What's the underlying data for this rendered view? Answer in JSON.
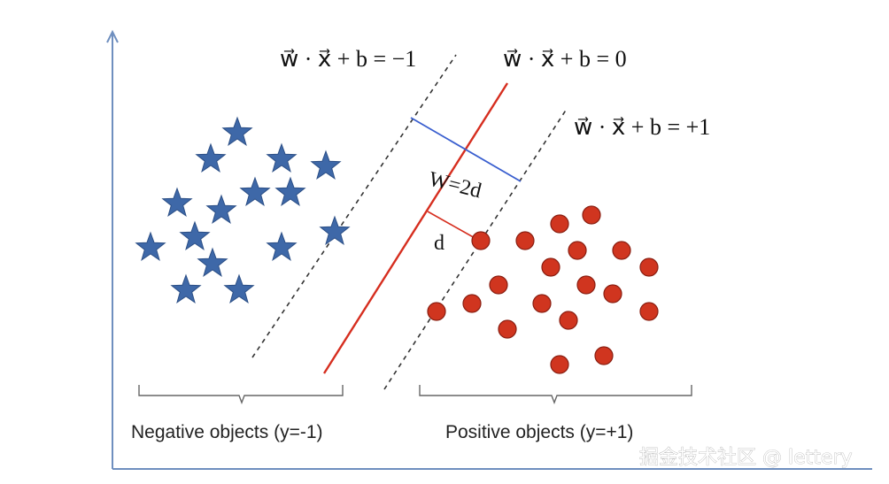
{
  "colors": {
    "axis": "#6f8fbf",
    "star": "#3e68a8",
    "star_stroke": "#2c4f86",
    "dot": "#d0351f",
    "dot_stroke": "#8a1f12",
    "hyperplane": "#d62e1f",
    "width_line": "#3a5fcf",
    "dashed": "#333333",
    "brace": "#666666"
  },
  "equations": {
    "negative": "w⃗ · x⃗ + b = −1",
    "middle": "w⃗ · x⃗ + b = 0",
    "positive": "w⃗ · x⃗ + b = +1"
  },
  "margin_labels": {
    "width": "W=2d",
    "half": "d"
  },
  "groups": {
    "negative": "Negative objects (y=-1)",
    "positive": "Positive objects (y=+1)"
  },
  "watermark": "掘金技术社区 @ lettery",
  "icons": {
    "negative_marker": "star-icon",
    "positive_marker": "circle-icon"
  }
}
